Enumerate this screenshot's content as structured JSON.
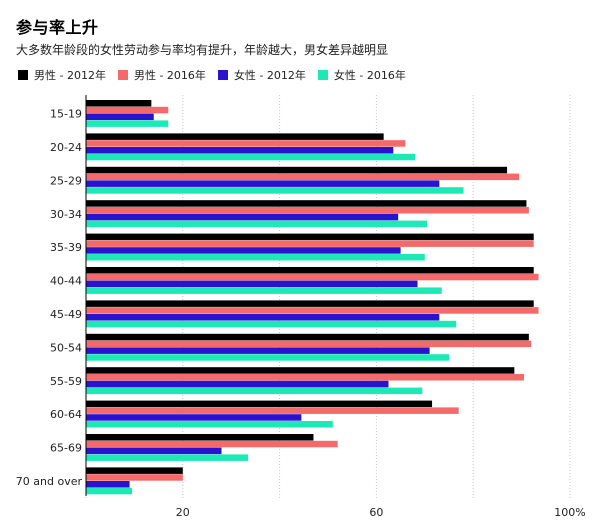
{
  "title": "参与率上升",
  "subtitle": "大多数年龄段的女性劳动参与率均有提升，年龄越大，男女差异越明显",
  "chart_data": {
    "type": "bar",
    "orientation": "horizontal",
    "categories": [
      "15-19",
      "20-24",
      "25-29",
      "30-34",
      "35-39",
      "40-44",
      "45-49",
      "50-54",
      "55-59",
      "60-64",
      "65-69",
      "70 and over"
    ],
    "series": [
      {
        "name": "男性 - 2012年",
        "color": "#000000",
        "values": [
          13.5,
          61.5,
          87,
          91,
          92.5,
          92.5,
          92.5,
          91.5,
          88.5,
          71.5,
          47,
          20
        ]
      },
      {
        "name": "男性 - 2016年",
        "color": "#f46969",
        "values": [
          17,
          66,
          89.5,
          91.5,
          92.5,
          93.5,
          93.5,
          92,
          90.5,
          77,
          52,
          20
        ]
      },
      {
        "name": "女性 - 2012年",
        "color": "#2a13cf",
        "values": [
          14,
          63.5,
          73,
          64.5,
          65,
          68.5,
          73,
          71,
          62.5,
          44.5,
          28,
          9
        ]
      },
      {
        "name": "女性 - 2016年",
        "color": "#1de9b6",
        "values": [
          17,
          68,
          78,
          70.5,
          70,
          73.5,
          76.5,
          75,
          69.5,
          51,
          33.5,
          9.5
        ]
      }
    ],
    "xticks": [
      20,
      60,
      100
    ],
    "xtick_labels": [
      "20",
      "60",
      "100%"
    ],
    "xlim": [
      0,
      100
    ],
    "grid": true,
    "legend_position": "top-left"
  }
}
